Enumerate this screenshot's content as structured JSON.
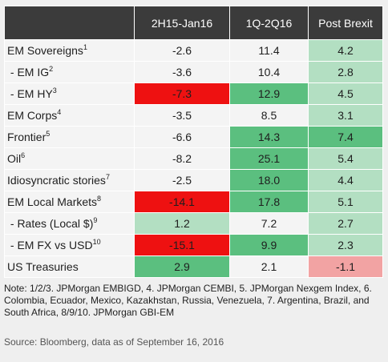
{
  "headers": [
    "2H15-Jan16",
    "1Q-2Q16",
    "Post Brexit"
  ],
  "rows": [
    {
      "label": "EM Sovereigns",
      "sup": "1",
      "values": [
        "-2.6",
        "11.4",
        "4.2"
      ],
      "colors": [
        "",
        "",
        "#b3dfc2"
      ]
    },
    {
      "label": " - EM IG",
      "sup": "2",
      "values": [
        "-3.6",
        "10.4",
        "2.8"
      ],
      "colors": [
        "",
        "",
        "#b3dfc2"
      ]
    },
    {
      "label": " - EM HY",
      "sup": "3",
      "values": [
        "-7.3",
        "12.9",
        "4.5"
      ],
      "colors": [
        "#ee1111",
        "#5bbf7f",
        "#b3dfc2"
      ]
    },
    {
      "label": "EM Corps",
      "sup": "4",
      "values": [
        "-3.5",
        "8.5",
        "3.1"
      ],
      "colors": [
        "",
        "",
        "#b3dfc2"
      ]
    },
    {
      "label": "Frontier",
      "sup": "5",
      "values": [
        "-6.6",
        "14.3",
        "7.4"
      ],
      "colors": [
        "",
        "#5bbf7f",
        "#5bbf7f"
      ]
    },
    {
      "label": "Oil",
      "sup": "6",
      "values": [
        "-8.2",
        "25.1",
        "5.4"
      ],
      "colors": [
        "",
        "#5bbf7f",
        "#b3dfc2"
      ]
    },
    {
      "label": "Idiosyncratic stories",
      "sup": "7",
      "values": [
        "-2.5",
        "18.0",
        "4.4"
      ],
      "colors": [
        "",
        "#5bbf7f",
        "#b3dfc2"
      ]
    },
    {
      "label": "EM Local Markets",
      "sup": "8",
      "values": [
        "-14.1",
        "17.8",
        "5.1"
      ],
      "colors": [
        "#ee1111",
        "#5bbf7f",
        "#b3dfc2"
      ]
    },
    {
      "label": " - Rates (Local $)",
      "sup": "9",
      "values": [
        "1.2",
        "7.2",
        "2.7"
      ],
      "colors": [
        "#b3dfc2",
        "",
        "#b3dfc2"
      ]
    },
    {
      "label": " - EM FX vs USD",
      "sup": "10",
      "values": [
        "-15.1",
        "9.9",
        "2.3"
      ],
      "colors": [
        "#ee1111",
        "#5bbf7f",
        "#b3dfc2"
      ]
    },
    {
      "label": "US Treasuries",
      "sup": "",
      "values": [
        "2.9",
        "2.1",
        "-1.1"
      ],
      "colors": [
        "#5bbf7f",
        "",
        "#f2a3a3"
      ]
    }
  ],
  "note": "Note: 1/2/3. JPMorgan EMBIGD, 4. JPMorgan CEMBI, 5. JPMorgan Nexgem Index, 6. Colombia, Ecuador, Mexico, Kazakhstan, Russia, Venezuela, 7. Argentina, Brazil, and South Africa, 8/9/10. JPMorgan GBI-EM",
  "source": "Source: Bloomberg, data as of September 16, 2016"
}
